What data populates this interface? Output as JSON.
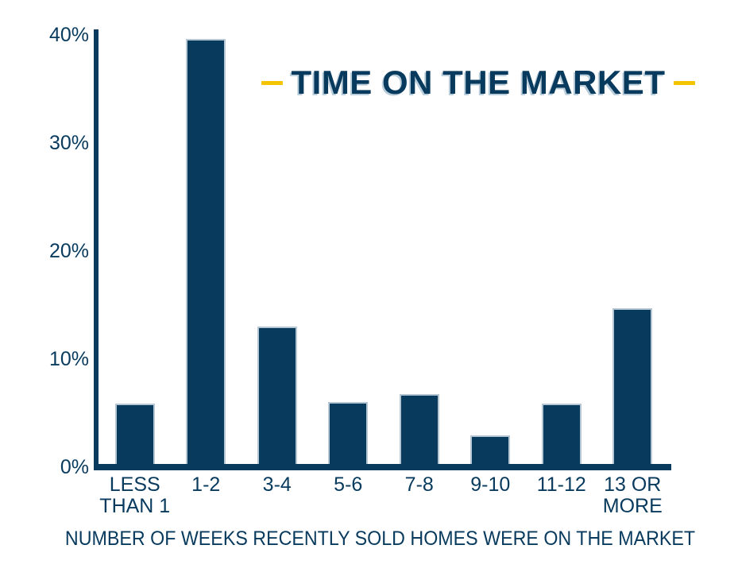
{
  "chart_data": {
    "type": "bar",
    "title": "TIME ON THE MARKET",
    "caption": "NUMBER OF WEEKS RECENTLY SOLD HOMES WERE ON THE MARKET",
    "categories": [
      "LESS\nTHAN 1",
      "1-2",
      "3-4",
      "5-6",
      "7-8",
      "9-10",
      "11-12",
      "13 OR\nMORE"
    ],
    "values": [
      5.6,
      39.6,
      12.8,
      5.8,
      6.5,
      2.7,
      5.6,
      14.5
    ],
    "unit": "%",
    "xlabel": "NUMBER OF WEEKS RECENTLY SOLD HOMES WERE ON THE MARKET",
    "ylabel": "",
    "ylim": [
      0,
      40
    ],
    "yticks": [
      0,
      10,
      20,
      30,
      40
    ],
    "ytick_labels": [
      "0%",
      "10%",
      "20%",
      "30%",
      "40%"
    ],
    "grid": false,
    "legend": false,
    "layout_hints": {
      "bar_color_role": "solid navy bars on white background",
      "title_accents": "short gold dashes flanking the title"
    },
    "colors": {
      "bar": "#083a5e",
      "axis": "#083a5e",
      "text": "#083a5e",
      "accent_dash": "#f5c400",
      "bar_stroke": "#b7c6d3",
      "background": "#ffffff"
    }
  }
}
